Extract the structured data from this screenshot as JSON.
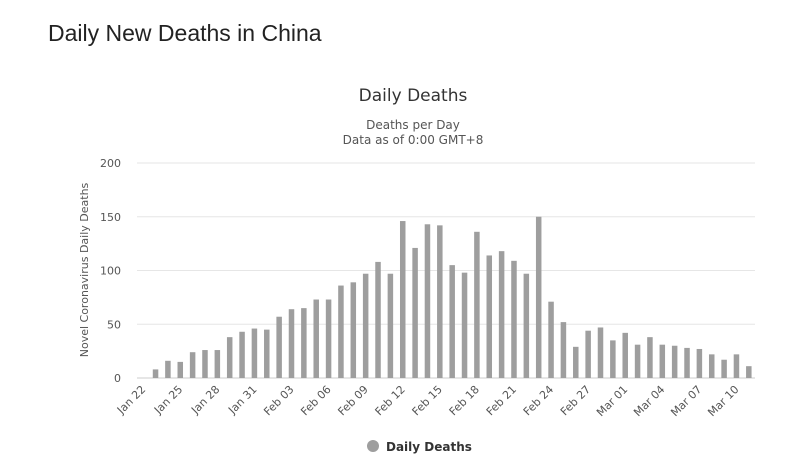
{
  "page": {
    "heading": "Daily New Deaths in China"
  },
  "chart_data": {
    "type": "bar",
    "title": "Daily Deaths",
    "subtitle_line1": "Deaths per Day",
    "subtitle_line2": "Data as of 0:00 GMT+8",
    "xlabel": "",
    "ylabel": "Novel Coronavirus Daily Deaths",
    "ylim": [
      0,
      200
    ],
    "yticks": [
      0,
      50,
      100,
      150,
      200
    ],
    "grid": true,
    "legend_position": "bottom-center",
    "bar_color": "#9e9e9e",
    "categories": [
      "Jan 22",
      "Jan 23",
      "Jan 24",
      "Jan 25",
      "Jan 26",
      "Jan 27",
      "Jan 28",
      "Jan 29",
      "Jan 30",
      "Jan 31",
      "Feb 01",
      "Feb 02",
      "Feb 03",
      "Feb 04",
      "Feb 05",
      "Feb 06",
      "Feb 07",
      "Feb 08",
      "Feb 09",
      "Feb 10",
      "Feb 11",
      "Feb 12",
      "Feb 13",
      "Feb 14",
      "Feb 15",
      "Feb 16",
      "Feb 17",
      "Feb 18",
      "Feb 19",
      "Feb 20",
      "Feb 21",
      "Feb 22",
      "Feb 23",
      "Feb 24",
      "Feb 25",
      "Feb 26",
      "Feb 27",
      "Feb 28",
      "Feb 29",
      "Mar 01",
      "Mar 02",
      "Mar 03",
      "Mar 04",
      "Mar 05",
      "Mar 06",
      "Mar 07",
      "Mar 08",
      "Mar 09",
      "Mar 10",
      "Mar 11"
    ],
    "tick_labels": [
      "Jan 22",
      "Jan 25",
      "Jan 28",
      "Jan 31",
      "Feb 03",
      "Feb 06",
      "Feb 09",
      "Feb 12",
      "Feb 15",
      "Feb 18",
      "Feb 21",
      "Feb 24",
      "Feb 27",
      "Mar 01",
      "Mar 04",
      "Mar 07",
      "Mar 10"
    ],
    "series": [
      {
        "name": "Daily Deaths",
        "values": [
          0,
          8,
          16,
          15,
          24,
          26,
          26,
          38,
          43,
          46,
          45,
          57,
          64,
          65,
          73,
          73,
          86,
          89,
          97,
          108,
          97,
          146,
          121,
          143,
          142,
          105,
          98,
          136,
          114,
          118,
          109,
          97,
          150,
          71,
          52,
          29,
          44,
          47,
          35,
          42,
          31,
          38,
          31,
          30,
          28,
          27,
          22,
          17,
          22,
          11
        ]
      }
    ]
  }
}
